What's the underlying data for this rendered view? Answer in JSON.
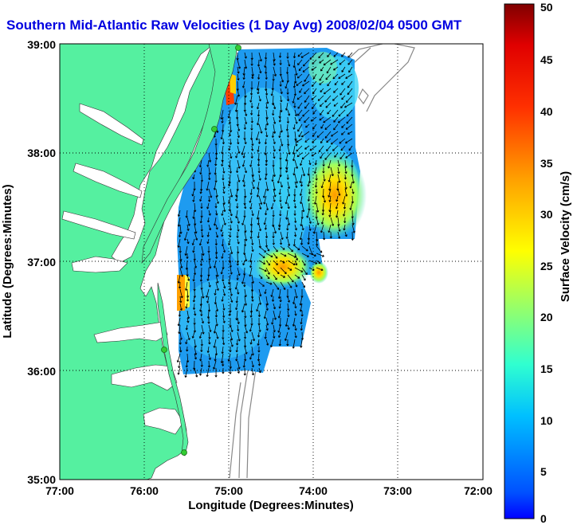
{
  "title": "Southern Mid-Atlantic Raw Velocities (1 Day Avg) 2008/02/04 0500 GMT",
  "map": {
    "lon_range": [
      -77,
      -72
    ],
    "lat_range": [
      35,
      39
    ],
    "x_ticks": [
      "77:00",
      "76:00",
      "75:00",
      "74:00",
      "73:00",
      "72:00"
    ],
    "y_ticks": [
      "39:00",
      "38:00",
      "37:00",
      "36:00",
      "35:00"
    ],
    "xlabel": "Longitude (Degrees:Minutes)",
    "ylabel": "Latitude (Degrees:Minutes)",
    "grid": "dotted",
    "land_color": "#55f0a0",
    "water_color": "#ffffff",
    "station_color": "#33cc33"
  },
  "colorbar": {
    "label": "Surface Velocity (cm/s)",
    "min": 0,
    "max": 50,
    "ticks": [
      "0",
      "5",
      "10",
      "15",
      "20",
      "25",
      "30",
      "35",
      "40",
      "45",
      "50"
    ],
    "colormap": "jet"
  }
}
